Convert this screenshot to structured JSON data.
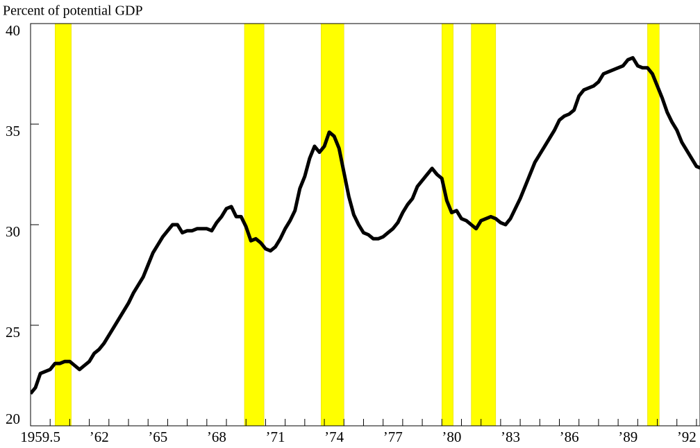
{
  "chart_data": {
    "type": "line",
    "axis_label": "Percent of potential GDP",
    "x": [
      1959,
      1959.25,
      1959.5,
      1959.75,
      1960,
      1960.25,
      1960.5,
      1960.75,
      1961,
      1961.25,
      1961.5,
      1961.75,
      1962,
      1962.25,
      1962.5,
      1962.75,
      1963,
      1963.25,
      1963.5,
      1963.75,
      1964,
      1964.25,
      1964.5,
      1964.75,
      1965,
      1965.25,
      1965.5,
      1965.75,
      1966,
      1966.25,
      1966.5,
      1966.75,
      1967,
      1967.25,
      1967.5,
      1967.75,
      1968,
      1968.25,
      1968.5,
      1968.75,
      1969,
      1969.25,
      1969.5,
      1969.75,
      1970,
      1970.25,
      1970.5,
      1970.75,
      1971,
      1971.25,
      1971.5,
      1971.75,
      1972,
      1972.25,
      1972.5,
      1972.75,
      1973,
      1973.25,
      1973.5,
      1973.75,
      1974,
      1974.25,
      1974.5,
      1974.75,
      1975,
      1975.25,
      1975.5,
      1975.75,
      1976,
      1976.25,
      1976.5,
      1976.75,
      1977,
      1977.25,
      1977.5,
      1977.75,
      1978,
      1978.25,
      1978.5,
      1978.75,
      1979,
      1979.25,
      1979.5,
      1979.75,
      1980,
      1980.25,
      1980.5,
      1980.75,
      1981,
      1981.25,
      1981.5,
      1981.75,
      1982,
      1982.25,
      1982.5,
      1982.75,
      1983,
      1983.25,
      1983.5,
      1983.75,
      1984,
      1984.25,
      1984.5,
      1984.75,
      1985,
      1985.25,
      1985.5,
      1985.75,
      1986,
      1986.25,
      1986.5,
      1986.75,
      1987,
      1987.25,
      1987.5,
      1987.75,
      1988,
      1988.25,
      1988.5,
      1988.75,
      1989,
      1989.25,
      1989.5,
      1989.75,
      1990,
      1990.25,
      1990.5,
      1990.75,
      1991,
      1991.25,
      1991.5,
      1991.75,
      1992,
      1992.25,
      1992.5,
      1992.75,
      1993,
      1993.25
    ],
    "series": [
      {
        "color": "#000000",
        "values": [
          21.6,
          21.9,
          22.6,
          22.7,
          22.8,
          23.1,
          23.1,
          23.2,
          23.2,
          23.0,
          22.8,
          23.0,
          23.2,
          23.6,
          23.8,
          24.1,
          24.5,
          24.9,
          25.3,
          25.7,
          26.1,
          26.6,
          27.0,
          27.4,
          28.0,
          28.6,
          29.0,
          29.4,
          29.7,
          30.0,
          30.0,
          29.6,
          29.7,
          29.7,
          29.8,
          29.8,
          29.8,
          29.7,
          30.1,
          30.4,
          30.8,
          30.9,
          30.4,
          30.4,
          29.9,
          29.2,
          29.3,
          29.1,
          28.8,
          28.7,
          28.9,
          29.3,
          29.8,
          30.2,
          30.7,
          31.8,
          32.4,
          33.3,
          33.9,
          33.6,
          33.9,
          34.6,
          34.4,
          33.8,
          32.6,
          31.4,
          30.5,
          30.0,
          29.6,
          29.5,
          29.3,
          29.3,
          29.4,
          29.6,
          29.8,
          30.1,
          30.6,
          31.0,
          31.3,
          31.9,
          32.2,
          32.5,
          32.8,
          32.5,
          32.3,
          31.2,
          30.6,
          30.7,
          30.3,
          30.2,
          30.0,
          29.8,
          30.2,
          30.3,
          30.4,
          30.3,
          30.1,
          30.0,
          30.3,
          30.8,
          31.3,
          31.9,
          32.5,
          33.1,
          33.5,
          33.9,
          34.3,
          34.7,
          35.2,
          35.4,
          35.5,
          35.7,
          36.4,
          36.7,
          36.8,
          36.9,
          37.1,
          37.5,
          37.6,
          37.7,
          37.8,
          37.9,
          38.2,
          38.3,
          37.9,
          37.8,
          37.8,
          37.5,
          36.9,
          36.3,
          35.6,
          35.1,
          34.7,
          34.1,
          33.7,
          33.3,
          32.9,
          32.8
        ]
      }
    ],
    "shaded_periods": [
      [
        1960.25,
        1961.08
      ],
      [
        1969.92,
        1970.92
      ],
      [
        1973.83,
        1975.0
      ],
      [
        1980.0,
        1980.58
      ],
      [
        1981.5,
        1982.75
      ],
      [
        1990.5,
        1991.1
      ]
    ],
    "shade_color": "#ffff00",
    "xlim": [
      1959,
      1993.18
    ],
    "ylim": [
      20,
      40
    ],
    "yticks": [
      20,
      25,
      30,
      35,
      40
    ],
    "xticks": [
      1959.5,
      {
        "value": 1962.5,
        "label": "’62"
      },
      {
        "value": 1965.5,
        "label": "’65"
      },
      {
        "value": 1968.5,
        "label": "’68"
      },
      {
        "value": 1971.5,
        "label": "’71"
      },
      {
        "value": 1974.5,
        "label": "’74"
      },
      {
        "value": 1977.5,
        "label": "’77"
      },
      {
        "value": 1980.5,
        "label": "’80"
      },
      {
        "value": 1983.5,
        "label": "’83"
      },
      {
        "value": 1986.5,
        "label": "’86"
      },
      {
        "value": 1989.5,
        "label": "’89"
      },
      {
        "value": 1992.5,
        "label": "’92"
      }
    ],
    "xminor": [
      1960,
      1961,
      1962,
      1963,
      1964,
      1965,
      1966,
      1967,
      1968,
      1969,
      1970,
      1971,
      1972,
      1973,
      1974,
      1975,
      1976,
      1977,
      1978,
      1979,
      1980,
      1981,
      1982,
      1983,
      1984,
      1985,
      1986,
      1987,
      1988,
      1989,
      1990,
      1991,
      1992,
      1993
    ]
  }
}
